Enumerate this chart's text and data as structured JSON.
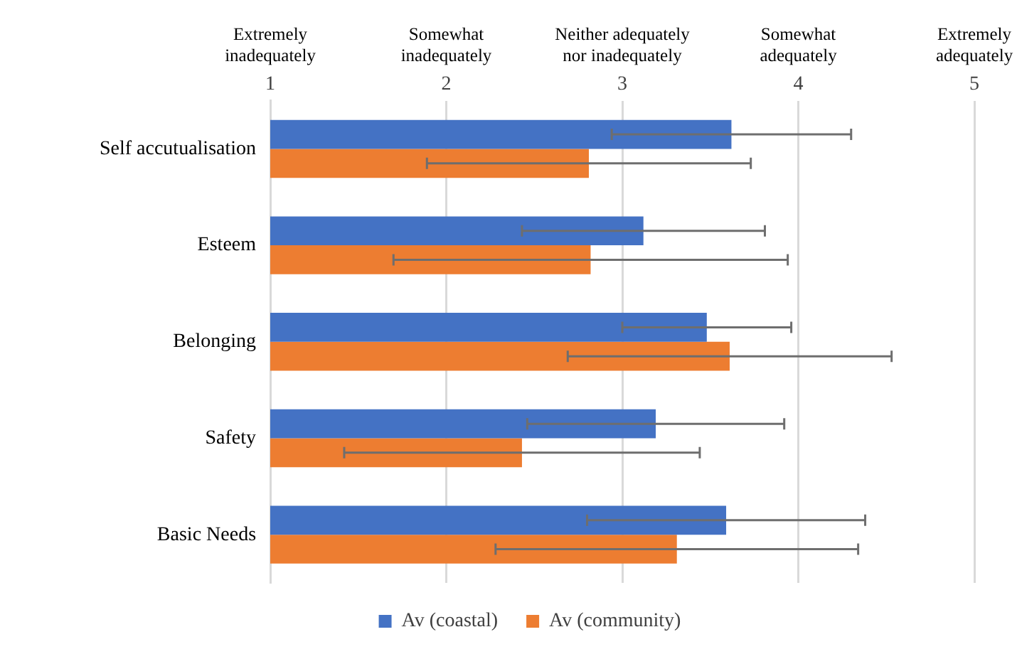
{
  "chart_data": {
    "type": "bar",
    "orientation": "horizontal",
    "categories": [
      "Self accutualisation",
      "Esteem",
      "Belonging",
      "Safety",
      "Basic Needs"
    ],
    "series": [
      {
        "name": "Av (coastal)",
        "color": "#4472c4",
        "values": [
          3.62,
          3.12,
          3.48,
          3.19,
          3.59
        ],
        "errors": [
          0.68,
          0.69,
          0.48,
          0.73,
          0.79
        ]
      },
      {
        "name": "Av (community)",
        "color": "#ed7d31",
        "values": [
          2.81,
          2.82,
          3.61,
          2.43,
          3.31
        ],
        "errors": [
          0.92,
          1.12,
          0.92,
          1.01,
          1.03
        ]
      }
    ],
    "xlim": [
      1,
      5
    ],
    "xticks": [
      1,
      2,
      3,
      4,
      5
    ],
    "annotations": [
      "Extremely\ninadequately",
      "Somewhat\ninadequately",
      "Neither adequately\nnor inadequately",
      "Somewhat\nadequately",
      "Extremely\nadequately"
    ],
    "grid": "x",
    "legend": "bottom"
  }
}
